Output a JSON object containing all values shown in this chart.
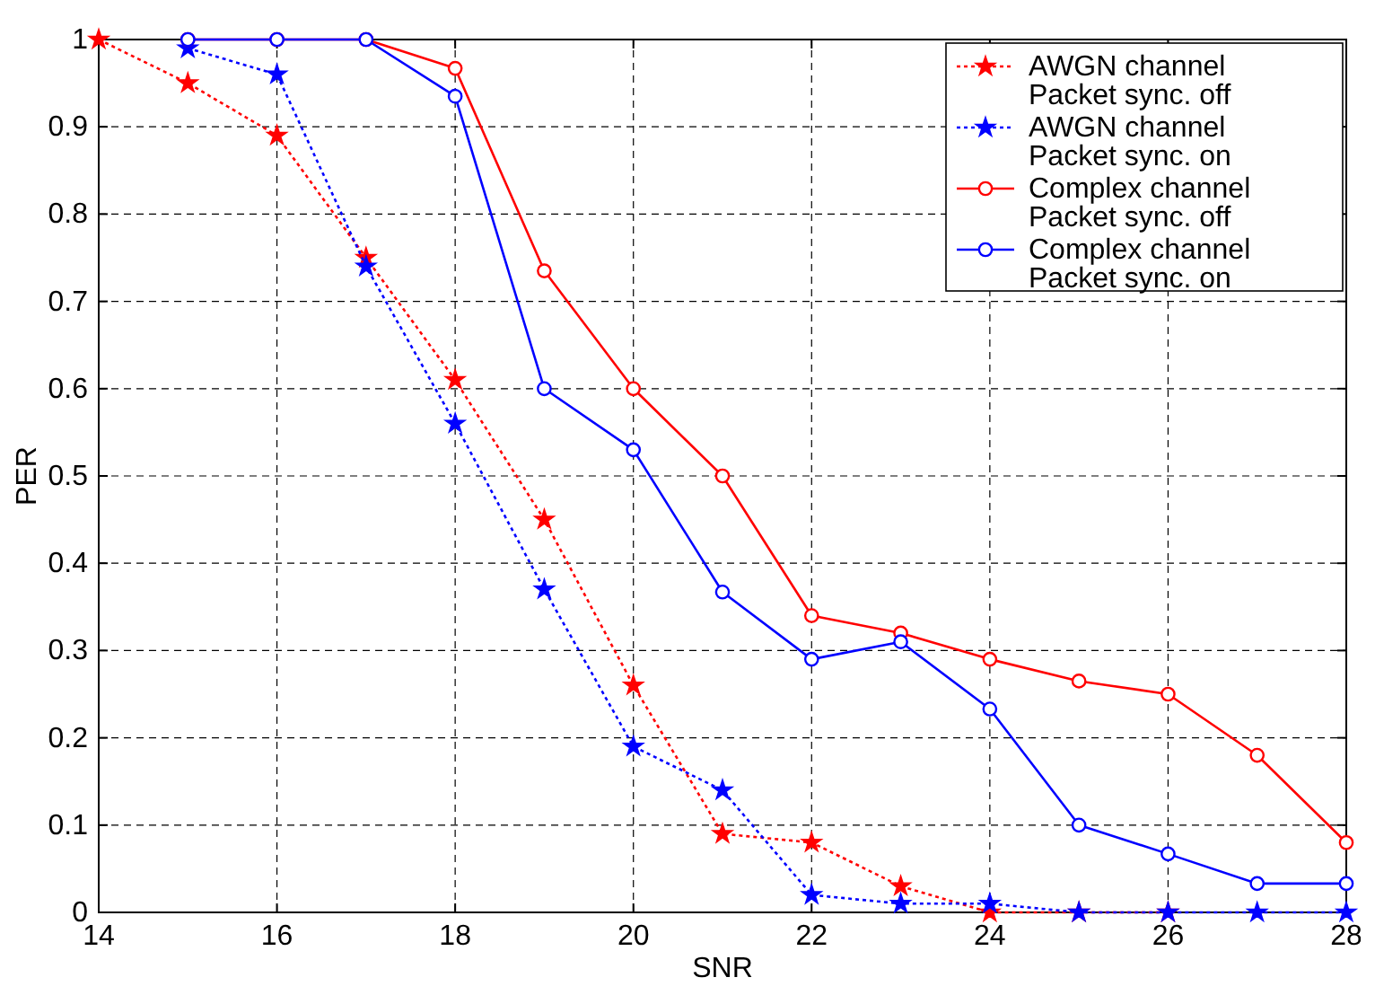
{
  "chart_data": {
    "type": "line",
    "xlabel": "SNR",
    "ylabel": "PER",
    "xlim": [
      14,
      28
    ],
    "ylim": [
      0,
      1
    ],
    "xticks": [
      14,
      16,
      18,
      20,
      22,
      24,
      26,
      28
    ],
    "yticks": [
      0,
      0.1,
      0.2,
      0.3,
      0.4,
      0.5,
      0.6,
      0.7,
      0.8,
      0.9,
      1
    ],
    "grid": true,
    "legend": "top right",
    "series": [
      {
        "name": "AWGN channel\nPacket sync. off",
        "color": "#ff0000",
        "marker": "star",
        "line_style": "dotted",
        "x": [
          14,
          15,
          16,
          17,
          18,
          19,
          20,
          21,
          22,
          23,
          24,
          25,
          26
        ],
        "values": [
          1,
          0.95,
          0.89,
          0.75,
          0.61,
          0.45,
          0.26,
          0.09,
          0.08,
          0.03,
          0,
          0,
          0
        ]
      },
      {
        "name": "AWGN channel\nPacket sync. on",
        "color": "#0000ff",
        "marker": "star",
        "line_style": "dotted",
        "x": [
          15,
          16,
          17,
          18,
          19,
          20,
          21,
          22,
          23,
          24,
          25,
          26,
          27,
          28
        ],
        "values": [
          0.99,
          0.96,
          0.74,
          0.56,
          0.37,
          0.19,
          0.14,
          0.02,
          0.01,
          0.01,
          0,
          0,
          0,
          0
        ]
      },
      {
        "name": "Complex channel\nPacket sync. off",
        "color": "#ff0000",
        "marker": "circle",
        "line_style": "solid",
        "x": [
          15,
          16,
          17,
          18,
          19,
          20,
          21,
          22,
          23,
          24,
          25,
          26,
          27,
          28
        ],
        "values": [
          1,
          1,
          1,
          0.967,
          0.735,
          0.6,
          0.5,
          0.34,
          0.32,
          0.29,
          0.265,
          0.25,
          0.18,
          0.08
        ]
      },
      {
        "name": "Complex channel\nPacket sync. on",
        "color": "#0000ff",
        "marker": "circle",
        "line_style": "solid",
        "x": [
          15,
          16,
          17,
          18,
          19,
          20,
          21,
          22,
          23,
          24,
          25,
          26,
          27,
          28
        ],
        "values": [
          1,
          1,
          1,
          0.935,
          0.6,
          0.53,
          0.367,
          0.29,
          0.31,
          0.233,
          0.1,
          0.067,
          0.033,
          0.033
        ]
      }
    ]
  }
}
